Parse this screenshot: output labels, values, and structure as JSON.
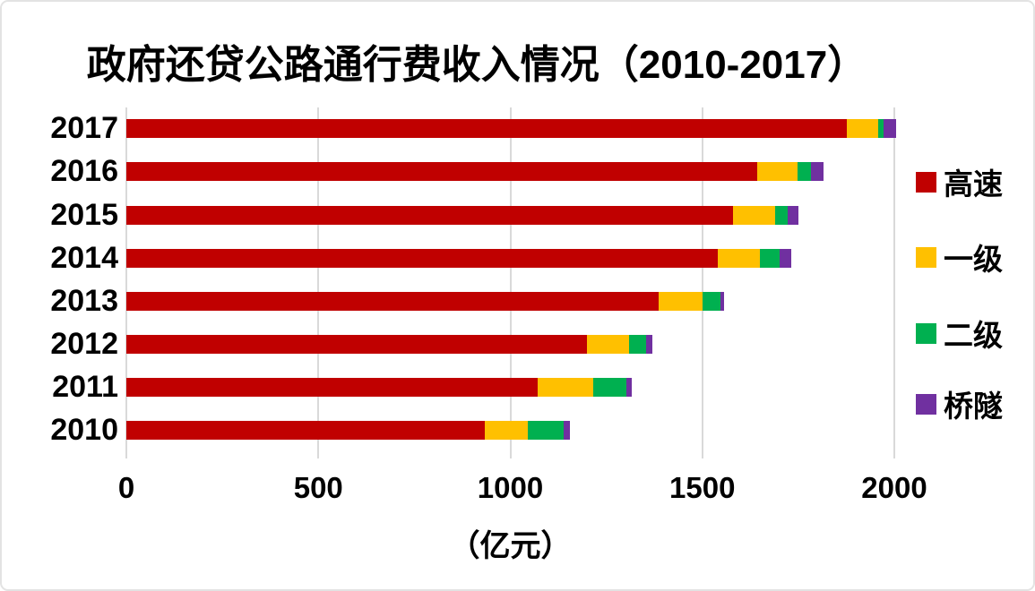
{
  "chart_data": {
    "type": "bar",
    "orientation": "horizontal",
    "stacked": true,
    "title": "政府还贷公路通行费收入情况（2010-2017）",
    "xlabel": "（亿元）",
    "xlim": [
      0,
      2000
    ],
    "xticks": [
      0,
      500,
      1000,
      1500,
      2000
    ],
    "grid": true,
    "legend_position": "right",
    "categories": [
      "2017",
      "2016",
      "2015",
      "2014",
      "2013",
      "2012",
      "2011",
      "2010"
    ],
    "series": [
      {
        "name": "高速",
        "color": "#c00000",
        "values": [
          1877,
          1643,
          1580,
          1540,
          1386,
          1200,
          1071,
          933
        ]
      },
      {
        "name": "一级",
        "color": "#ffc000",
        "values": [
          81,
          105,
          110,
          110,
          114,
          110,
          145,
          113
        ]
      },
      {
        "name": "二级",
        "color": "#00b050",
        "values": [
          14,
          35,
          33,
          52,
          47,
          44,
          86,
          93
        ]
      },
      {
        "name": "桥隧",
        "color": "#7030a0",
        "values": [
          33,
          33,
          28,
          30,
          9,
          16,
          14,
          16
        ]
      }
    ],
    "totals": [
      2005,
      1816,
      1751,
      1732,
      1556,
      1370,
      1316,
      1155
    ],
    "colors": {
      "gridline": "#d9d9d9",
      "text": "#000000",
      "background": "#ffffff",
      "border": "#e3e3e3"
    }
  }
}
